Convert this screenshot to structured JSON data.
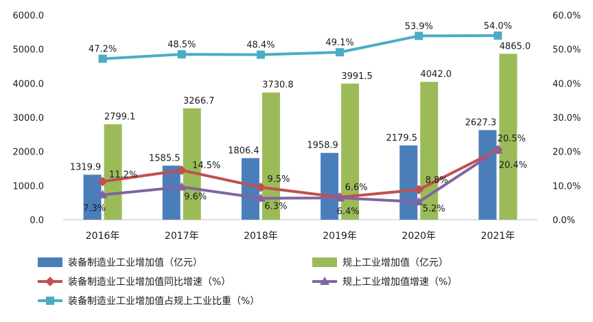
{
  "chart_data": {
    "type": "bar",
    "categories": [
      "2016年",
      "2017年",
      "2018年",
      "2019年",
      "2020年",
      "2021年"
    ],
    "y_left": {
      "min": 0,
      "max": 6000,
      "ticks": [
        "0.0",
        "1000.0",
        "2000.0",
        "3000.0",
        "4000.0",
        "5000.0",
        "6000.0"
      ]
    },
    "y_right": {
      "min": 0,
      "max": 60,
      "ticks": [
        "0.0%",
        "10.0%",
        "20.0%",
        "30.0%",
        "40.0%",
        "50.0%",
        "60.0%"
      ]
    },
    "grid": false,
    "legend_position": "bottom",
    "series": [
      {
        "name": "装备制造业工业增加值（亿元）",
        "kind": "bar",
        "axis": "left",
        "color": "#4a7ebb",
        "values": [
          1319.9,
          1585.5,
          1806.4,
          1958.9,
          2179.5,
          2627.3
        ],
        "labels": [
          "1319.9",
          "1585.5",
          "1806.4",
          "1958.9",
          "2179.5",
          "2627.3"
        ]
      },
      {
        "name": "规上工业增加值（亿元）",
        "kind": "bar",
        "axis": "left",
        "color": "#9bbb59",
        "values": [
          2799.1,
          3266.7,
          3730.8,
          3991.5,
          4042.0,
          4865.0
        ],
        "labels": [
          "2799.1",
          "3266.7",
          "3730.8",
          "3991.5",
          "4042.0",
          "4865.0"
        ]
      },
      {
        "name": "装备制造业工业增加值同比增速（%）",
        "kind": "line",
        "axis": "right",
        "color": "#c0504d",
        "marker": "diamond",
        "values": [
          11.2,
          14.5,
          9.5,
          6.6,
          8.8,
          20.5
        ],
        "labels": [
          "11.2%",
          "14.5%",
          "9.5%",
          "6.6%",
          "8.8%",
          "20.5%"
        ]
      },
      {
        "name": "规上工业增加值增速（%）",
        "kind": "line",
        "axis": "right",
        "color": "#8064a2",
        "marker": "triangle",
        "values": [
          7.3,
          9.6,
          6.3,
          6.4,
          5.2,
          20.4
        ],
        "labels": [
          "7.3%",
          "9.6%",
          "6.3%",
          "6.4%",
          "5.2%",
          "20.4%"
        ]
      },
      {
        "name": "装备制造业工业增加值占规上工业比重（%）",
        "kind": "line",
        "axis": "right",
        "color": "#4bacc6",
        "marker": "square",
        "values": [
          47.2,
          48.5,
          48.4,
          49.1,
          53.9,
          54.0
        ],
        "labels": [
          "47.2%",
          "48.5%",
          "48.4%",
          "49.1%",
          "53.9%",
          "54.0%"
        ]
      }
    ]
  }
}
